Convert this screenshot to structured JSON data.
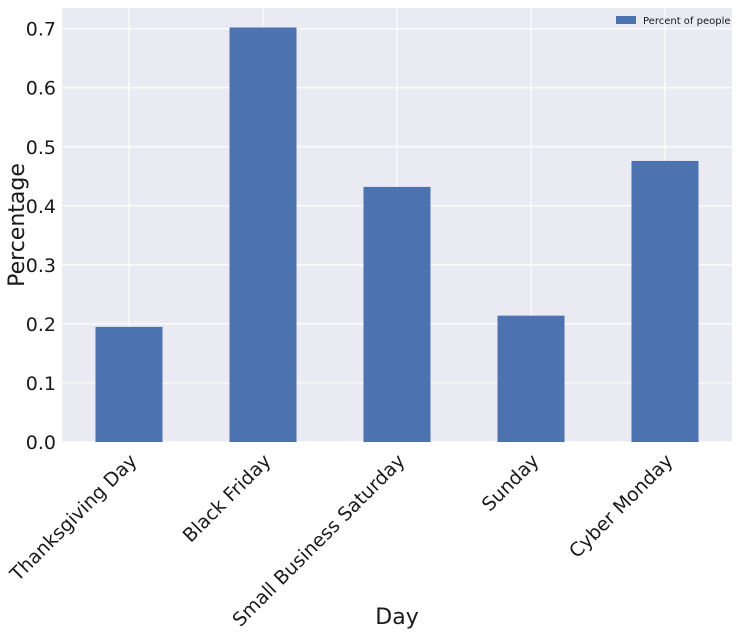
{
  "chart_data": {
    "type": "bar",
    "title": "",
    "xlabel": "Day",
    "ylabel": "Percentage",
    "categories": [
      "Thanksgiving Day",
      "Black Friday",
      "Small Business Saturday",
      "Sunday",
      "Cyber Monday"
    ],
    "series": [
      {
        "name": "Percent of people",
        "values": [
          0.195,
          0.702,
          0.432,
          0.214,
          0.476
        ]
      }
    ],
    "ylim": [
      0,
      0.735
    ],
    "yticks": [
      "0.0",
      "0.1",
      "0.2",
      "0.3",
      "0.4",
      "0.5",
      "0.6",
      "0.7"
    ],
    "grid": true,
    "legend": "top-right",
    "colors": {
      "background": "#eaeaf2",
      "grid": "#ffffff",
      "bar": "#4c72b0"
    }
  }
}
